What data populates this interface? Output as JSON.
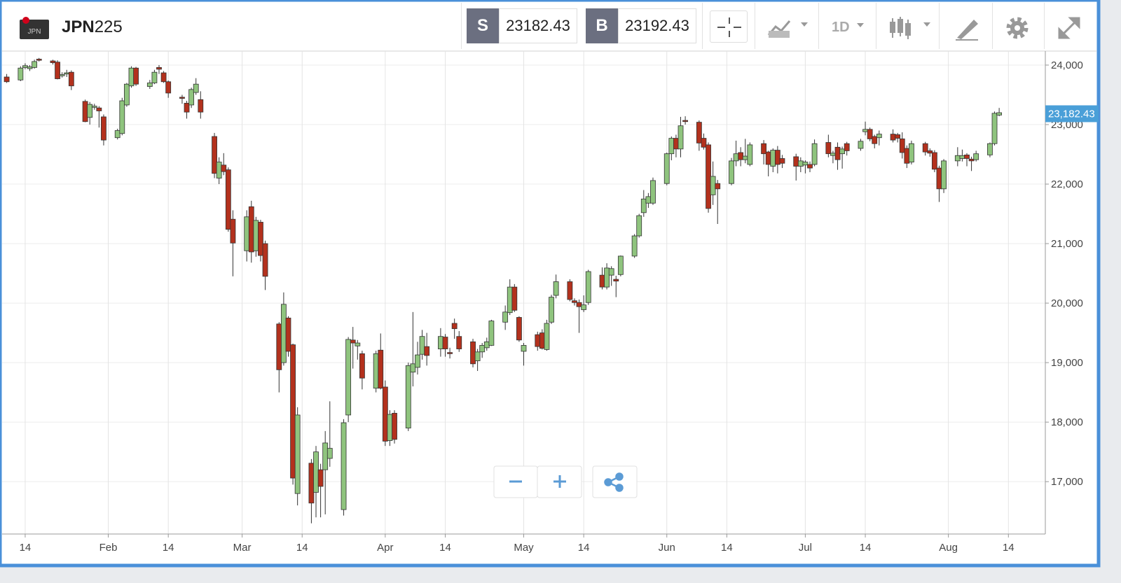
{
  "toolbar": {
    "flag_label": "JPN",
    "symbol_bold": "JPN",
    "symbol_rest": "225",
    "sell_label": "S",
    "sell_price": 23182.43,
    "buy_label": "B",
    "buy_price": 23192.43,
    "interval": "1D"
  },
  "chart_data": {
    "type": "candlestick",
    "x": [
      "01-10",
      "01-13",
      "01-14",
      "01-15",
      "01-16",
      "01-17",
      "01-20",
      "01-21",
      "01-22",
      "01-23",
      "01-24",
      "01-27",
      "01-28",
      "01-29",
      "01-30",
      "01-31",
      "02-03",
      "02-04",
      "02-05",
      "02-06",
      "02-07",
      "02-10",
      "02-11",
      "02-12",
      "02-13",
      "02-14",
      "02-17",
      "02-18",
      "02-19",
      "02-20",
      "02-21",
      "02-24",
      "02-25",
      "02-26",
      "02-27",
      "02-28",
      "03-02",
      "03-03",
      "03-04",
      "03-05",
      "03-06",
      "03-09",
      "03-10",
      "03-11",
      "03-12",
      "03-13",
      "03-16",
      "03-17",
      "03-18",
      "03-19",
      "03-20",
      "03-23",
      "03-24",
      "03-25",
      "03-26",
      "03-27",
      "03-30",
      "03-31",
      "04-01",
      "04-02",
      "04-03",
      "04-06",
      "04-07",
      "04-08",
      "04-09",
      "04-10",
      "04-13",
      "04-14",
      "04-15",
      "04-16",
      "04-17",
      "04-20",
      "04-21",
      "04-22",
      "04-23",
      "04-24",
      "04-27",
      "04-28",
      "04-29",
      "04-30",
      "05-01",
      "05-04",
      "05-05",
      "05-06",
      "05-07",
      "05-08",
      "05-11",
      "05-12",
      "05-13",
      "05-14",
      "05-15",
      "05-18",
      "05-19",
      "05-20",
      "05-21",
      "05-22",
      "05-25",
      "05-26",
      "05-27",
      "05-28",
      "05-29",
      "06-01",
      "06-02",
      "06-03",
      "06-04",
      "06-05",
      "06-08",
      "06-09",
      "06-10",
      "06-11",
      "06-12",
      "06-15",
      "06-16",
      "06-17",
      "06-18",
      "06-19",
      "06-22",
      "06-23",
      "06-24",
      "06-25",
      "06-26",
      "06-29",
      "06-30",
      "07-01",
      "07-02",
      "07-03",
      "07-06",
      "07-07",
      "07-08",
      "07-09",
      "07-10",
      "07-13",
      "07-14",
      "07-15",
      "07-16",
      "07-17",
      "07-20",
      "07-21",
      "07-22",
      "07-23",
      "07-24",
      "07-27",
      "07-28",
      "07-29",
      "07-30",
      "07-31",
      "08-03",
      "08-04",
      "08-05",
      "08-06",
      "08-07",
      "08-10",
      "08-11",
      "08-12"
    ],
    "open": [
      23800,
      23750,
      23960,
      23940,
      23960,
      24100,
      24070,
      24050,
      23820,
      23850,
      23880,
      23390,
      23120,
      23290,
      23280,
      23130,
      22780,
      22850,
      23330,
      23650,
      23950,
      23640,
      23700,
      23960,
      23870,
      23720,
      23460,
      23360,
      23330,
      23540,
      23420,
      22800,
      22100,
      22320,
      22240,
      21410,
      20880,
      21620,
      20880,
      21360,
      21000,
      19650,
      19000,
      19750,
      19300,
      16800,
      17310,
      16820,
      17200,
      17200,
      17390,
      16530,
      18120,
      19380,
      19280,
      19150,
      18570,
      19210,
      18590,
      17690,
      18150,
      17900,
      18840,
      18920,
      19140,
      19270,
      19230,
      19430,
      19170,
      19660,
      19440,
      19350,
      19030,
      19180,
      19250,
      19290,
      19680,
      19840,
      20270,
      19760,
      19190,
      19470,
      19500,
      19220,
      19680,
      20130,
      20360,
      20040,
      20010,
      19890,
      20010,
      20470,
      20270,
      20470,
      20400,
      20480,
      20790,
      21130,
      21520,
      21680,
      21680,
      22010,
      22510,
      22770,
      22590,
      23070,
      23040,
      22770,
      22660,
      21820,
      22010,
      22010,
      22390,
      22530,
      22410,
      22330,
      22680,
      22540,
      22300,
      22570,
      22430,
      22460,
      22300,
      22320,
      22330,
      22330,
      22700,
      22480,
      22620,
      22510,
      22680,
      22600,
      22880,
      22920,
      22800,
      22780,
      22840,
      22830,
      22760,
      22600,
      22370,
      22680,
      22560,
      22530,
      22270,
      21920,
      22390,
      22430,
      22490,
      22420,
      22410,
      22490,
      22680,
      23160
    ],
    "high": [
      23850,
      23980,
      24030,
      24000,
      24090,
      24120,
      24090,
      24080,
      23880,
      23920,
      23910,
      23420,
      23380,
      23350,
      23310,
      23170,
      22930,
      23450,
      23700,
      23980,
      23970,
      23750,
      23920,
      24000,
      23900,
      23740,
      23500,
      23400,
      23620,
      23780,
      23560,
      22860,
      22450,
      22520,
      22280,
      21560,
      21560,
      21720,
      21450,
      21400,
      21050,
      19680,
      20180,
      19780,
      19320,
      18250,
      17380,
      17600,
      17300,
      17850,
      18350,
      18050,
      19430,
      19600,
      19380,
      19200,
      19200,
      19490,
      18700,
      18200,
      18200,
      19000,
      19850,
      19350,
      19550,
      19500,
      19580,
      19480,
      19250,
      19740,
      19530,
      19400,
      19230,
      19330,
      19420,
      19720,
      19960,
      20400,
      20320,
      19780,
      19330,
      19520,
      19560,
      19720,
      20140,
      20480,
      20400,
      20080,
      20060,
      20130,
      20560,
      20600,
      20670,
      20620,
      20460,
      20800,
      21160,
      21500,
      21900,
      21850,
      22110,
      22530,
      22800,
      22830,
      23130,
      23140,
      23070,
      22850,
      22700,
      22380,
      22070,
      22440,
      22730,
      22620,
      22760,
      22700,
      22740,
      22560,
      22600,
      22640,
      22490,
      22510,
      22450,
      22400,
      22380,
      22750,
      22830,
      22560,
      22700,
      22630,
      22710,
      22760,
      23050,
      22950,
      22830,
      22900,
      22920,
      22860,
      22870,
      22650,
      22730,
      22710,
      22600,
      22570,
      22310,
      22420,
      22620,
      22580,
      22520,
      22460,
      22560,
      22700,
      23220,
      23280
    ],
    "low": [
      23700,
      23730,
      23930,
      23900,
      23940,
      24060,
      24010,
      23760,
      23790,
      23800,
      23580,
      23040,
      23000,
      23250,
      22950,
      22650,
      22750,
      22820,
      23300,
      23620,
      23650,
      23600,
      23680,
      23850,
      23700,
      23450,
      23350,
      23100,
      23280,
      23500,
      23100,
      22100,
      22000,
      22150,
      21200,
      20450,
      20700,
      20680,
      20780,
      20700,
      20220,
      18500,
      18950,
      19100,
      16950,
      16600,
      16300,
      16400,
      16400,
      16450,
      17250,
      16430,
      18000,
      18900,
      19050,
      18550,
      18500,
      18550,
      17600,
      17600,
      17640,
      17850,
      18600,
      18800,
      19050,
      18950,
      19100,
      19100,
      19070,
      19400,
      19180,
      18920,
      18860,
      19080,
      19200,
      19280,
      19550,
      19800,
      19850,
      19350,
      18950,
      19200,
      19220,
      19200,
      19650,
      20080,
      20030,
      19960,
      19500,
      19850,
      19970,
      20230,
      20230,
      20290,
      20100,
      20450,
      20760,
      21100,
      21450,
      21600,
      21650,
      21980,
      22400,
      22450,
      22450,
      23000,
      22560,
      22580,
      21520,
      21650,
      21330,
      21980,
      22300,
      22300,
      22350,
      22300,
      22330,
      22130,
      22200,
      22180,
      22270,
      22060,
      22200,
      22180,
      22200,
      22300,
      22450,
      22350,
      22240,
      22260,
      22480,
      22560,
      22820,
      22720,
      22600,
      22650,
      22700,
      22700,
      22430,
      22270,
      22330,
      22480,
      22460,
      22200,
      21700,
      21850,
      22300,
      22380,
      22300,
      22220,
      22380,
      22450,
      22650,
      23140
    ],
    "close": [
      23720,
      23950,
      23990,
      23970,
      24060,
      24080,
      24040,
      23770,
      23840,
      23870,
      23650,
      23050,
      23340,
      23310,
      23230,
      22740,
      22900,
      23400,
      23680,
      23950,
      23680,
      23700,
      23880,
      23930,
      23720,
      23530,
      23440,
      23210,
      23590,
      23680,
      23210,
      22180,
      22370,
      22210,
      21240,
      21010,
      21450,
      20860,
      21390,
      20800,
      20450,
      18880,
      19980,
      19190,
      17060,
      18120,
      16640,
      17500,
      16920,
      17650,
      17560,
      17990,
      19390,
      19330,
      19330,
      18740,
      19150,
      18570,
      17680,
      18130,
      17710,
      18950,
      18980,
      19130,
      19440,
      19120,
      19440,
      19230,
      19150,
      19570,
      19230,
      18980,
      19180,
      19290,
      19350,
      19700,
      19850,
      20270,
      19880,
      19380,
      19290,
      19270,
      19240,
      19660,
      20100,
      20360,
      20060,
      20010,
      19940,
      19970,
      20530,
      20270,
      20590,
      20580,
      20370,
      20790,
      21130,
      21470,
      21750,
      21790,
      22060,
      22510,
      22770,
      22590,
      22980,
      23050,
      22690,
      22620,
      21590,
      22130,
      21920,
      22390,
      22510,
      22410,
      22470,
      22660,
      22510,
      22330,
      22570,
      22330,
      22350,
      22300,
      22390,
      22370,
      22270,
      22680,
      22510,
      22520,
      22410,
      22590,
      22560,
      22720,
      22920,
      22760,
      22680,
      22840,
      22740,
      22770,
      22530,
      22350,
      22680,
      22540,
      22520,
      22250,
      21920,
      22390,
      22480,
      22480,
      22430,
      22390,
      22510,
      22680,
      23190,
      23200
    ],
    "up_color": "#8fc47e",
    "down_color": "#b3311d",
    "xlim": [
      "01-09",
      "08-22"
    ],
    "xticks": [
      {
        "value": "01-14",
        "label": "14"
      },
      {
        "value": "02-01",
        "label": "Feb"
      },
      {
        "value": "02-14",
        "label": "14"
      },
      {
        "value": "03-01",
        "label": "Mar"
      },
      {
        "value": "03-14",
        "label": "14"
      },
      {
        "value": "04-01",
        "label": "Apr"
      },
      {
        "value": "04-14",
        "label": "14"
      },
      {
        "value": "05-01",
        "label": "May"
      },
      {
        "value": "05-14",
        "label": "14"
      },
      {
        "value": "06-01",
        "label": "Jun"
      },
      {
        "value": "06-14",
        "label": "14"
      },
      {
        "value": "07-01",
        "label": "Jul"
      },
      {
        "value": "07-14",
        "label": "14"
      },
      {
        "value": "08-01",
        "label": "Aug"
      },
      {
        "value": "08-14",
        "label": "14"
      }
    ],
    "ylim": [
      16120,
      24235
    ],
    "yticks": [
      {
        "value": 17000,
        "label": "17,000"
      },
      {
        "value": 18000,
        "label": "18,000"
      },
      {
        "value": 19000,
        "label": "19,000"
      },
      {
        "value": 20000,
        "label": "20,000"
      },
      {
        "value": 21000,
        "label": "21,000"
      },
      {
        "value": 22000,
        "label": "22,000"
      },
      {
        "value": 23000,
        "label": "23,000"
      },
      {
        "value": 24000,
        "label": "24,000"
      }
    ],
    "grid": true,
    "last_price": {
      "value": 23182.43,
      "label": "23,182.43"
    }
  }
}
